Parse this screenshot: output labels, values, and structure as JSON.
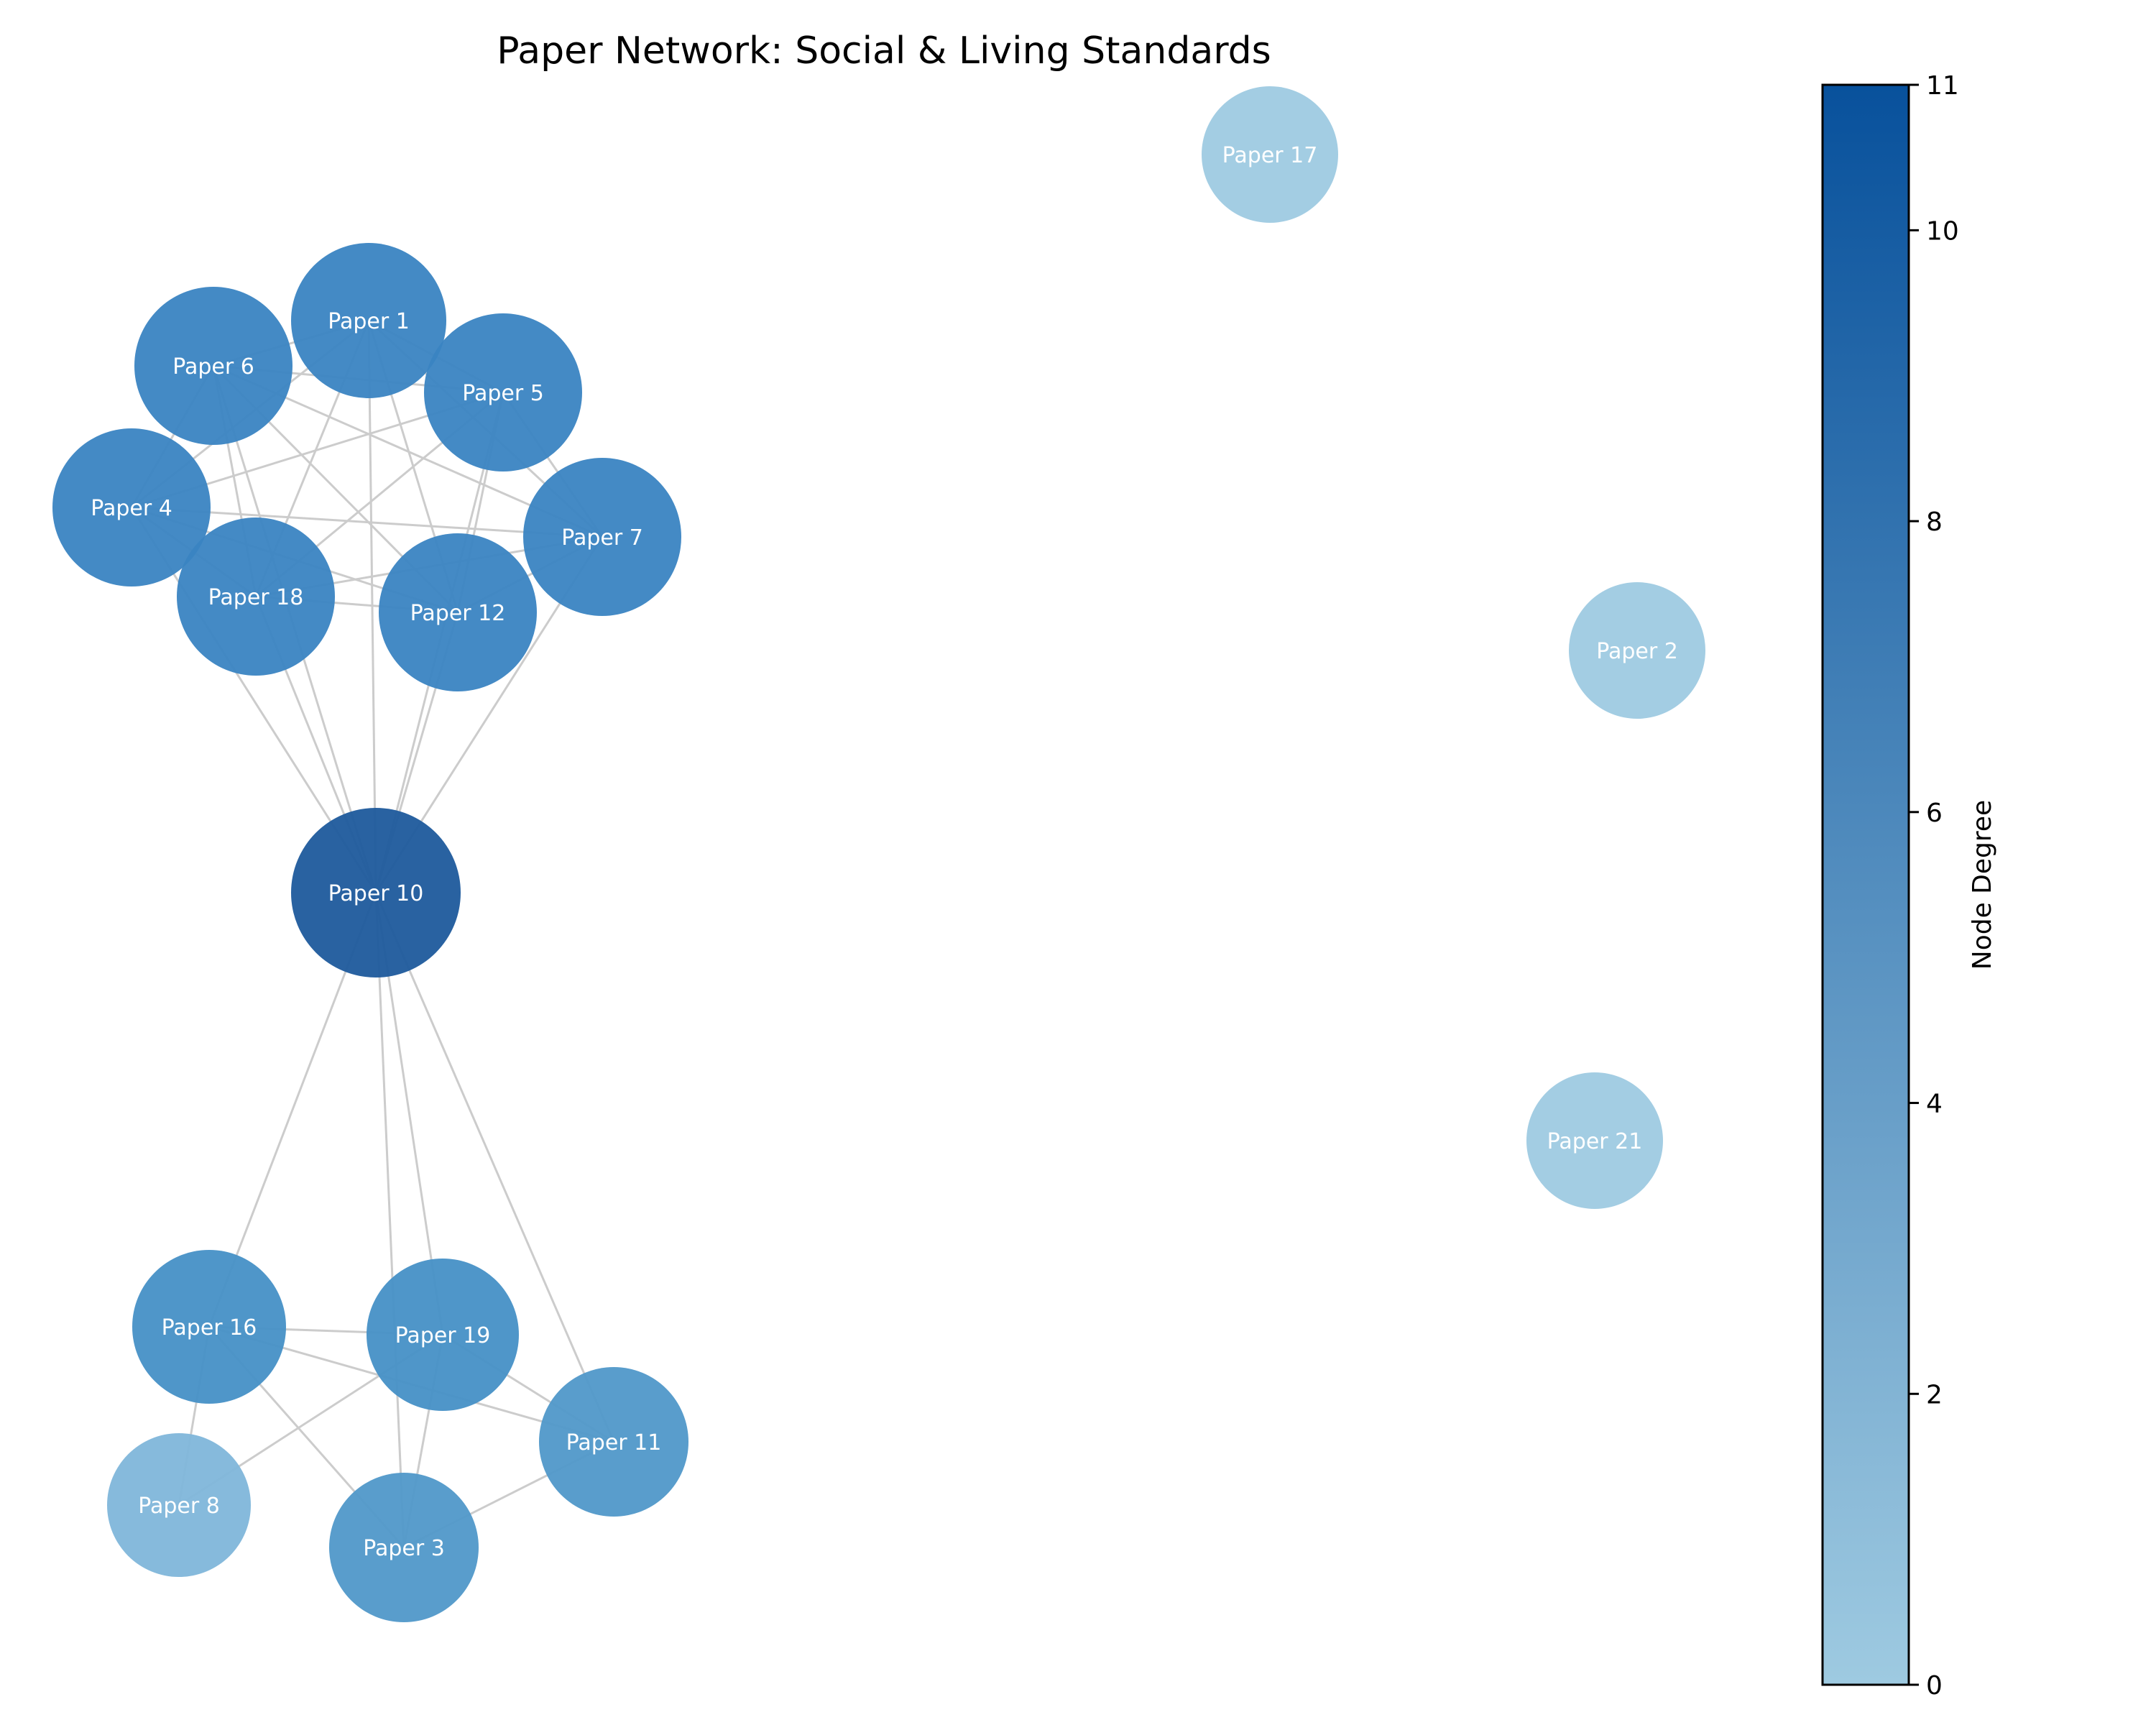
{
  "title": "Paper Network: Social & Living Standards",
  "colorbar": {
    "label": "Node Degree",
    "min": 0,
    "max": 11,
    "ticks": [
      0,
      2,
      4,
      6,
      8,
      10,
      11
    ],
    "tick_labels": [
      "0",
      "2",
      "4",
      "6",
      "8",
      "10",
      "11"
    ],
    "color_low": "#9ecae1",
    "color_high": "#08519c"
  },
  "edge_color": "#cccccc",
  "nodes": [
    {
      "id": "p1",
      "label": "Paper 1",
      "degree": 7,
      "color": "#3a84c2"
    },
    {
      "id": "p2",
      "label": "Paper 2",
      "degree": 0,
      "color": "#9ecae1"
    },
    {
      "id": "p3",
      "label": "Paper 3",
      "degree": 4,
      "color": "#5098c9"
    },
    {
      "id": "p4",
      "label": "Paper 4",
      "degree": 7,
      "color": "#3a84c2"
    },
    {
      "id": "p5",
      "label": "Paper 5",
      "degree": 7,
      "color": "#3a84c2"
    },
    {
      "id": "p6",
      "label": "Paper 6",
      "degree": 7,
      "color": "#3a84c2"
    },
    {
      "id": "p7",
      "label": "Paper 7",
      "degree": 7,
      "color": "#3a84c2"
    },
    {
      "id": "p8",
      "label": "Paper 8",
      "degree": 2,
      "color": "#7fb6da"
    },
    {
      "id": "p10",
      "label": "Paper 10",
      "degree": 11,
      "color": "#1e5a9c"
    },
    {
      "id": "p11",
      "label": "Paper 11",
      "degree": 4,
      "color": "#5098c9"
    },
    {
      "id": "p12",
      "label": "Paper 12",
      "degree": 7,
      "color": "#3a84c2"
    },
    {
      "id": "p16",
      "label": "Paper 16",
      "degree": 5,
      "color": "#4690c6"
    },
    {
      "id": "p17",
      "label": "Paper 17",
      "degree": 0,
      "color": "#9ecae1"
    },
    {
      "id": "p18",
      "label": "Paper 18",
      "degree": 7,
      "color": "#3a84c2"
    },
    {
      "id": "p19",
      "label": "Paper 19",
      "degree": 5,
      "color": "#4690c6"
    },
    {
      "id": "p21",
      "label": "Paper 21",
      "degree": 0,
      "color": "#9ecae1"
    }
  ],
  "edges": [
    [
      "p1",
      "p6"
    ],
    [
      "p1",
      "p5"
    ],
    [
      "p1",
      "p4"
    ],
    [
      "p1",
      "p18"
    ],
    [
      "p1",
      "p12"
    ],
    [
      "p1",
      "p7"
    ],
    [
      "p1",
      "p10"
    ],
    [
      "p6",
      "p5"
    ],
    [
      "p6",
      "p4"
    ],
    [
      "p6",
      "p18"
    ],
    [
      "p6",
      "p12"
    ],
    [
      "p6",
      "p7"
    ],
    [
      "p6",
      "p10"
    ],
    [
      "p5",
      "p4"
    ],
    [
      "p5",
      "p18"
    ],
    [
      "p5",
      "p12"
    ],
    [
      "p5",
      "p7"
    ],
    [
      "p5",
      "p10"
    ],
    [
      "p4",
      "p18"
    ],
    [
      "p4",
      "p12"
    ],
    [
      "p4",
      "p7"
    ],
    [
      "p4",
      "p10"
    ],
    [
      "p18",
      "p12"
    ],
    [
      "p18",
      "p7"
    ],
    [
      "p18",
      "p10"
    ],
    [
      "p12",
      "p7"
    ],
    [
      "p12",
      "p10"
    ],
    [
      "p7",
      "p10"
    ],
    [
      "p10",
      "p16"
    ],
    [
      "p10",
      "p19"
    ],
    [
      "p10",
      "p3"
    ],
    [
      "p10",
      "p11"
    ],
    [
      "p16",
      "p19"
    ],
    [
      "p16",
      "p8"
    ],
    [
      "p16",
      "p3"
    ],
    [
      "p16",
      "p11"
    ],
    [
      "p19",
      "p8"
    ],
    [
      "p19",
      "p3"
    ],
    [
      "p19",
      "p11"
    ],
    [
      "p3",
      "p11"
    ]
  ]
}
